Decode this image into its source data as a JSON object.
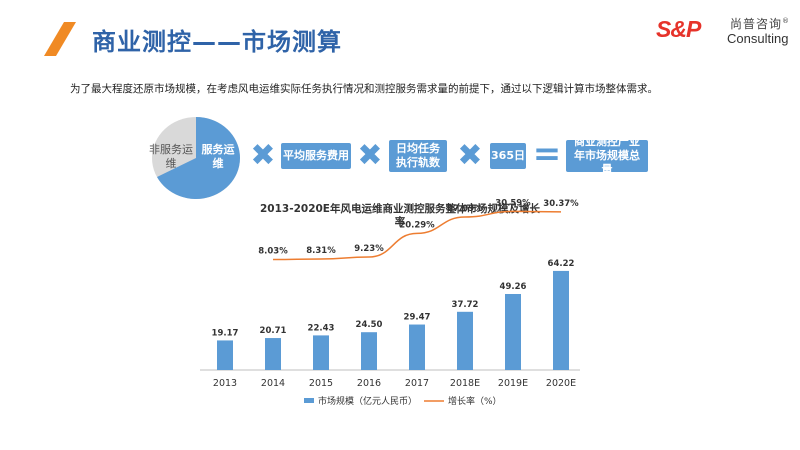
{
  "header": {
    "title": "商业测控——市场测算",
    "logo_mark": "S&P",
    "logo_cn": "尚普咨询",
    "logo_reg": "®",
    "logo_en": "Consulting"
  },
  "intro": "为了最大程度还原市场规模，在考虑风电运维实际任务执行情况和测控服务需求量的前提下，通过以下逻辑计算市场整体需求。",
  "formula": {
    "pie_other": "非服务运维",
    "pie_service": "服务运维",
    "term1": "平均服务费用",
    "term2": "日均任务执行轨数",
    "term3": "365日",
    "result": "商业测控产业年市场规模总量",
    "times": "✖",
    "equals": "="
  },
  "colors": {
    "accent_blue": "#5b9bd5",
    "title_blue": "#2f63a8",
    "line_orange": "#ed7d31",
    "slash_orange": "#f08a24",
    "logo_red": "#e6332a",
    "pie_gray": "#d9d9d9"
  },
  "chart_data": {
    "type": "bar",
    "title": "2013-2020E年风电运维商业测控服务整体市场规模及增长率",
    "categories": [
      "2013",
      "2014",
      "2015",
      "2016",
      "2017",
      "2018E",
      "2019E",
      "2020E"
    ],
    "series": [
      {
        "name": "市场规模（亿元人民币）",
        "type": "bar",
        "values": [
          19.17,
          20.71,
          22.43,
          24.5,
          29.47,
          37.72,
          49.26,
          64.22
        ],
        "labels": [
          "19.17",
          "20.71",
          "22.43",
          "24.50",
          "29.47",
          "37.72",
          "49.26",
          "64.22"
        ]
      },
      {
        "name": "增长率（%）",
        "type": "line",
        "values": [
          null,
          8.03,
          8.31,
          9.23,
          20.29,
          27.99,
          30.59,
          30.37
        ],
        "labels": [
          "",
          "8.03%",
          "8.31%",
          "9.23%",
          "20.29%",
          "27.99%",
          "30.59%",
          "30.37%"
        ]
      }
    ],
    "ylim": [
      0,
      70
    ],
    "y2lim": [
      -40,
      35
    ],
    "legend_position": "bottom"
  }
}
